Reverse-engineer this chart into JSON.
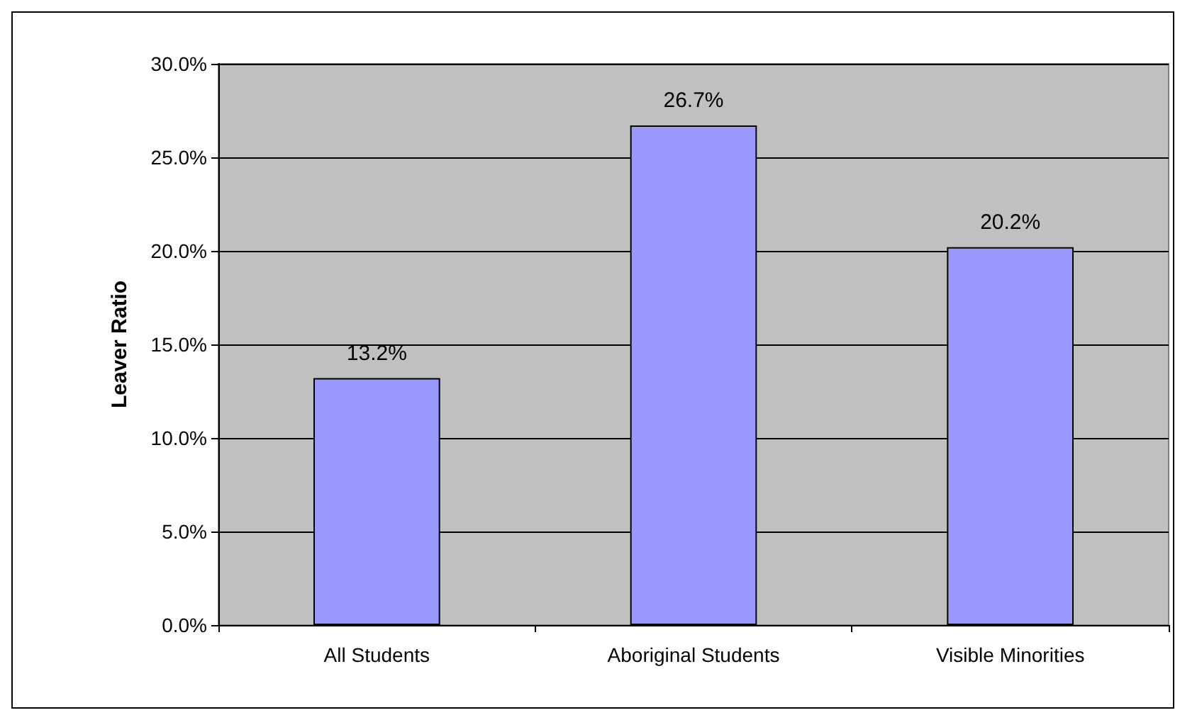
{
  "chart_data": {
    "type": "bar",
    "ylabel": "Leaver Ratio",
    "categories": [
      "All Students",
      "Aboriginal Students",
      "Visible Minorities"
    ],
    "values": [
      13.2,
      26.7,
      20.2
    ],
    "color": "#9999ff",
    "value_labels": [
      "13.2%",
      "26.7%",
      "20.2%"
    ],
    "ylim": [
      0,
      30
    ],
    "yticks": [
      {
        "value": 0,
        "label": "0.0%"
      },
      {
        "value": 5,
        "label": "5.0%"
      },
      {
        "value": 10,
        "label": "10.0%"
      },
      {
        "value": 15,
        "label": "15.0%"
      },
      {
        "value": 20,
        "label": "20.0%"
      },
      {
        "value": 25,
        "label": "25.0%"
      },
      {
        "value": 30,
        "label": "30.0%"
      }
    ],
    "grid": "y"
  }
}
